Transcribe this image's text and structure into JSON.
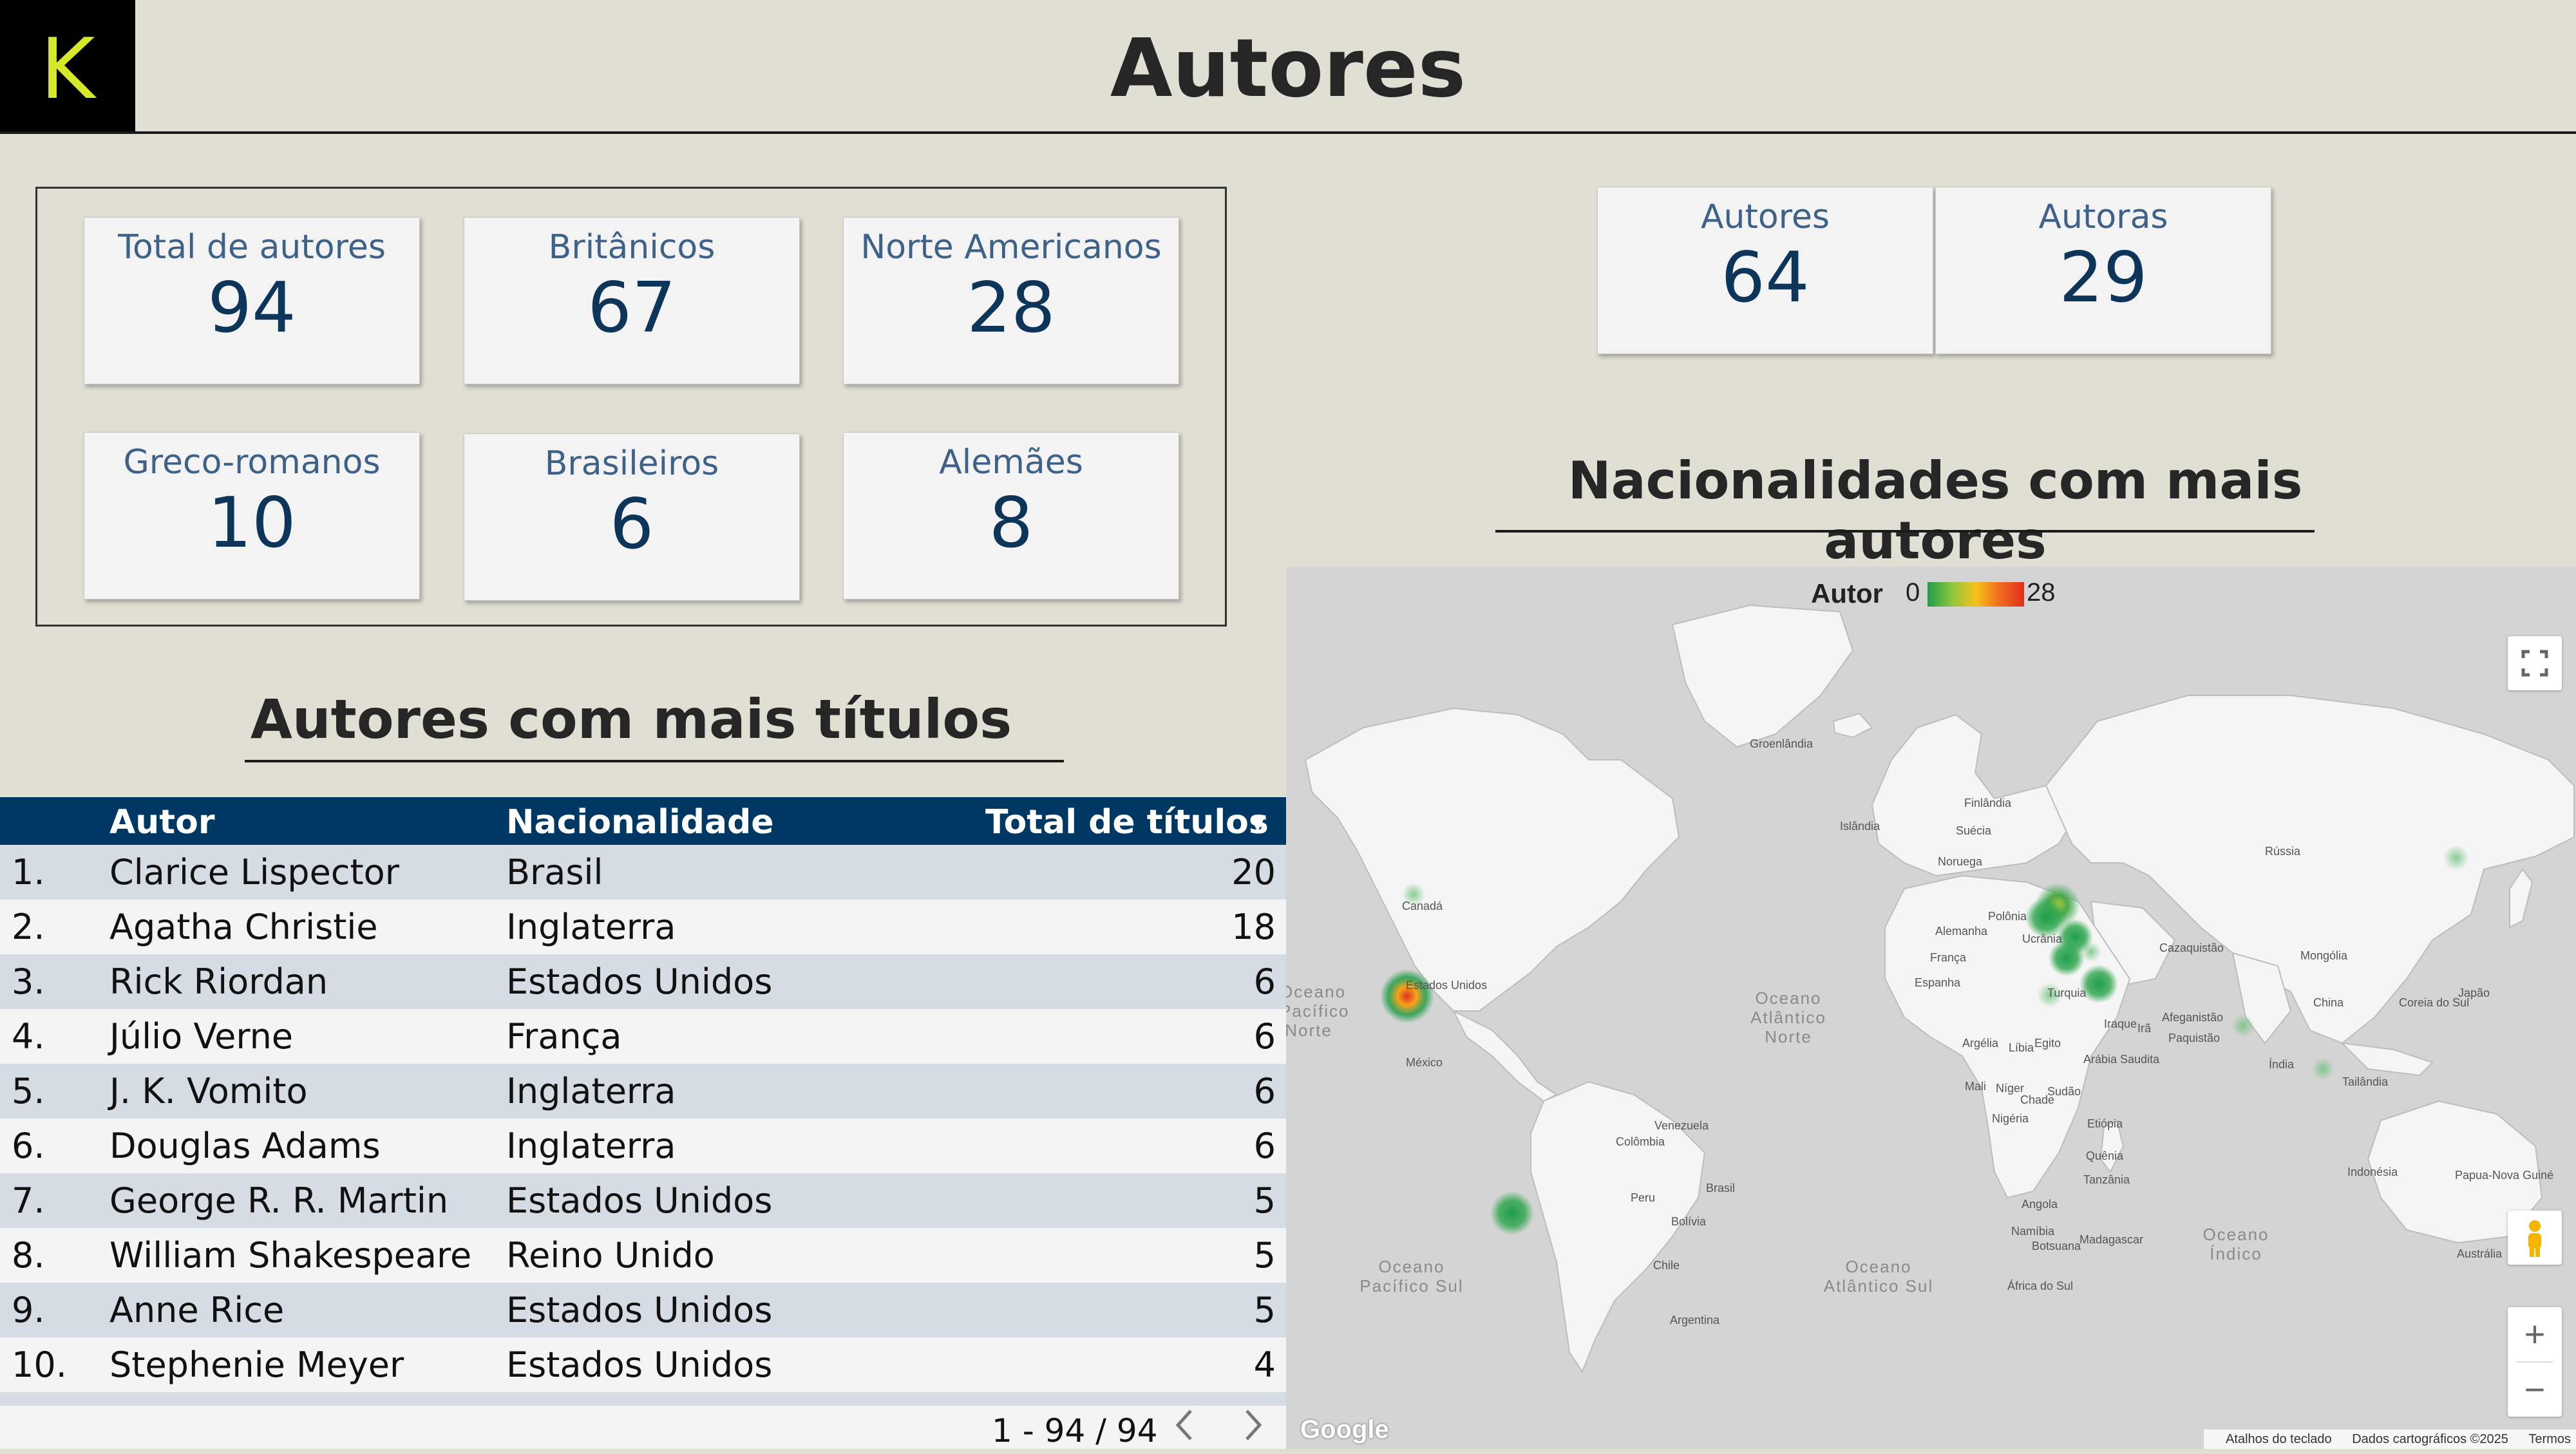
{
  "logo": {
    "letter": "K"
  },
  "header": {
    "title": "Autores"
  },
  "kpis": [
    {
      "label": "Total de autores",
      "value": "94"
    },
    {
      "label": "Britânicos",
      "value": "67"
    },
    {
      "label": "Norte Americanos",
      "value": "28"
    },
    {
      "label": "Greco-romanos",
      "value": "10"
    },
    {
      "label": "Brasileiros",
      "value": "6"
    },
    {
      "label": "Alemães",
      "value": "8"
    },
    {
      "label": "Autores",
      "value": "64"
    },
    {
      "label": "Autoras",
      "value": "29"
    }
  ],
  "sections": {
    "table_title": "Autores com mais títulos",
    "map_title": "Nacionalidades com mais autores"
  },
  "table": {
    "headers": {
      "author": "Autor",
      "nationality": "Nacionalidade",
      "total": "Total de títulos",
      "sort_icon": "sort-desc-icon"
    },
    "rows": [
      {
        "rank": "1.",
        "author": "Clarice Lispector",
        "nationality": "Brasil",
        "total": "20"
      },
      {
        "rank": "2.",
        "author": "Agatha Christie",
        "nationality": "Inglaterra",
        "total": "18"
      },
      {
        "rank": "3.",
        "author": "Rick Riordan",
        "nationality": "Estados Unidos",
        "total": "6"
      },
      {
        "rank": "4.",
        "author": "Júlio Verne",
        "nationality": "França",
        "total": "6"
      },
      {
        "rank": "5.",
        "author": "J. K. Vomito",
        "nationality": "Inglaterra",
        "total": "6"
      },
      {
        "rank": "6.",
        "author": "Douglas Adams",
        "nationality": "Inglaterra",
        "total": "6"
      },
      {
        "rank": "7.",
        "author": "George R. R. Martin",
        "nationality": "Estados Unidos",
        "total": "5"
      },
      {
        "rank": "8.",
        "author": "William Shakespeare",
        "nationality": "Reino Unido",
        "total": "5"
      },
      {
        "rank": "9.",
        "author": "Anne Rice",
        "nationality": "Estados Unidos",
        "total": "5"
      },
      {
        "rank": "10.",
        "author": "Stephenie Meyer",
        "nationality": "Estados Unidos",
        "total": "4"
      }
    ],
    "pagination": {
      "text": "1 - 94 / 94",
      "prev_icon": "chevron-left-icon",
      "next_icon": "chevron-right-icon"
    }
  },
  "map": {
    "legend": {
      "label": "Autor",
      "min": "0",
      "max": "28"
    },
    "colors": {
      "low": "#1f9e4a",
      "mid": "#f7c21b",
      "high": "#e0301e",
      "land": "#f5f5f5",
      "water": "#d4d4d4"
    },
    "country_labels": [
      "Groenlândia",
      "Islândia",
      "Finlândia",
      "Suécia",
      "Noruega",
      "Rússia",
      "Polônia",
      "Alemanha",
      "Ucrânia",
      "França",
      "Espanha",
      "Cazaquistão",
      "Mongólia",
      "Turquia",
      "China",
      "Coreia do Sul",
      "Japão",
      "Canadá",
      "Estados Unidos",
      "México",
      "Iraque",
      "Irã",
      "Afeganistão",
      "Paquistão",
      "Argélia",
      "Líbia",
      "Egito",
      "Arábia Saudita",
      "Índia",
      "Tailândia",
      "Mali",
      "Níger",
      "Chade",
      "Sudão",
      "Nigéria",
      "Etiópia",
      "Venezuela",
      "Colômbia",
      "Quênia",
      "Tanzânia",
      "Peru",
      "Brasil",
      "Bolívia",
      "Angola",
      "Namíbia",
      "Botsuana",
      "Madagascar",
      "Chile",
      "África do Sul",
      "Argentina",
      "Indonésia",
      "Papua-Nova Guiné",
      "Austrália"
    ],
    "ocean_labels": [
      "Oceano Atlântico Norte",
      "Oceano Pacífico Norte",
      "Oceano Pacífico Sul",
      "Oceano Atlântico Sul",
      "Oceano Índico"
    ],
    "attribution": {
      "google": "Google",
      "shortcuts": "Atalhos do teclado",
      "data": "Dados cartográficos ©2025",
      "terms": "Termos"
    },
    "controls": {
      "fullscreen": "fullscreen-icon",
      "pegman": "pegman-icon",
      "zoom_in": "+",
      "zoom_out": "−"
    }
  }
}
